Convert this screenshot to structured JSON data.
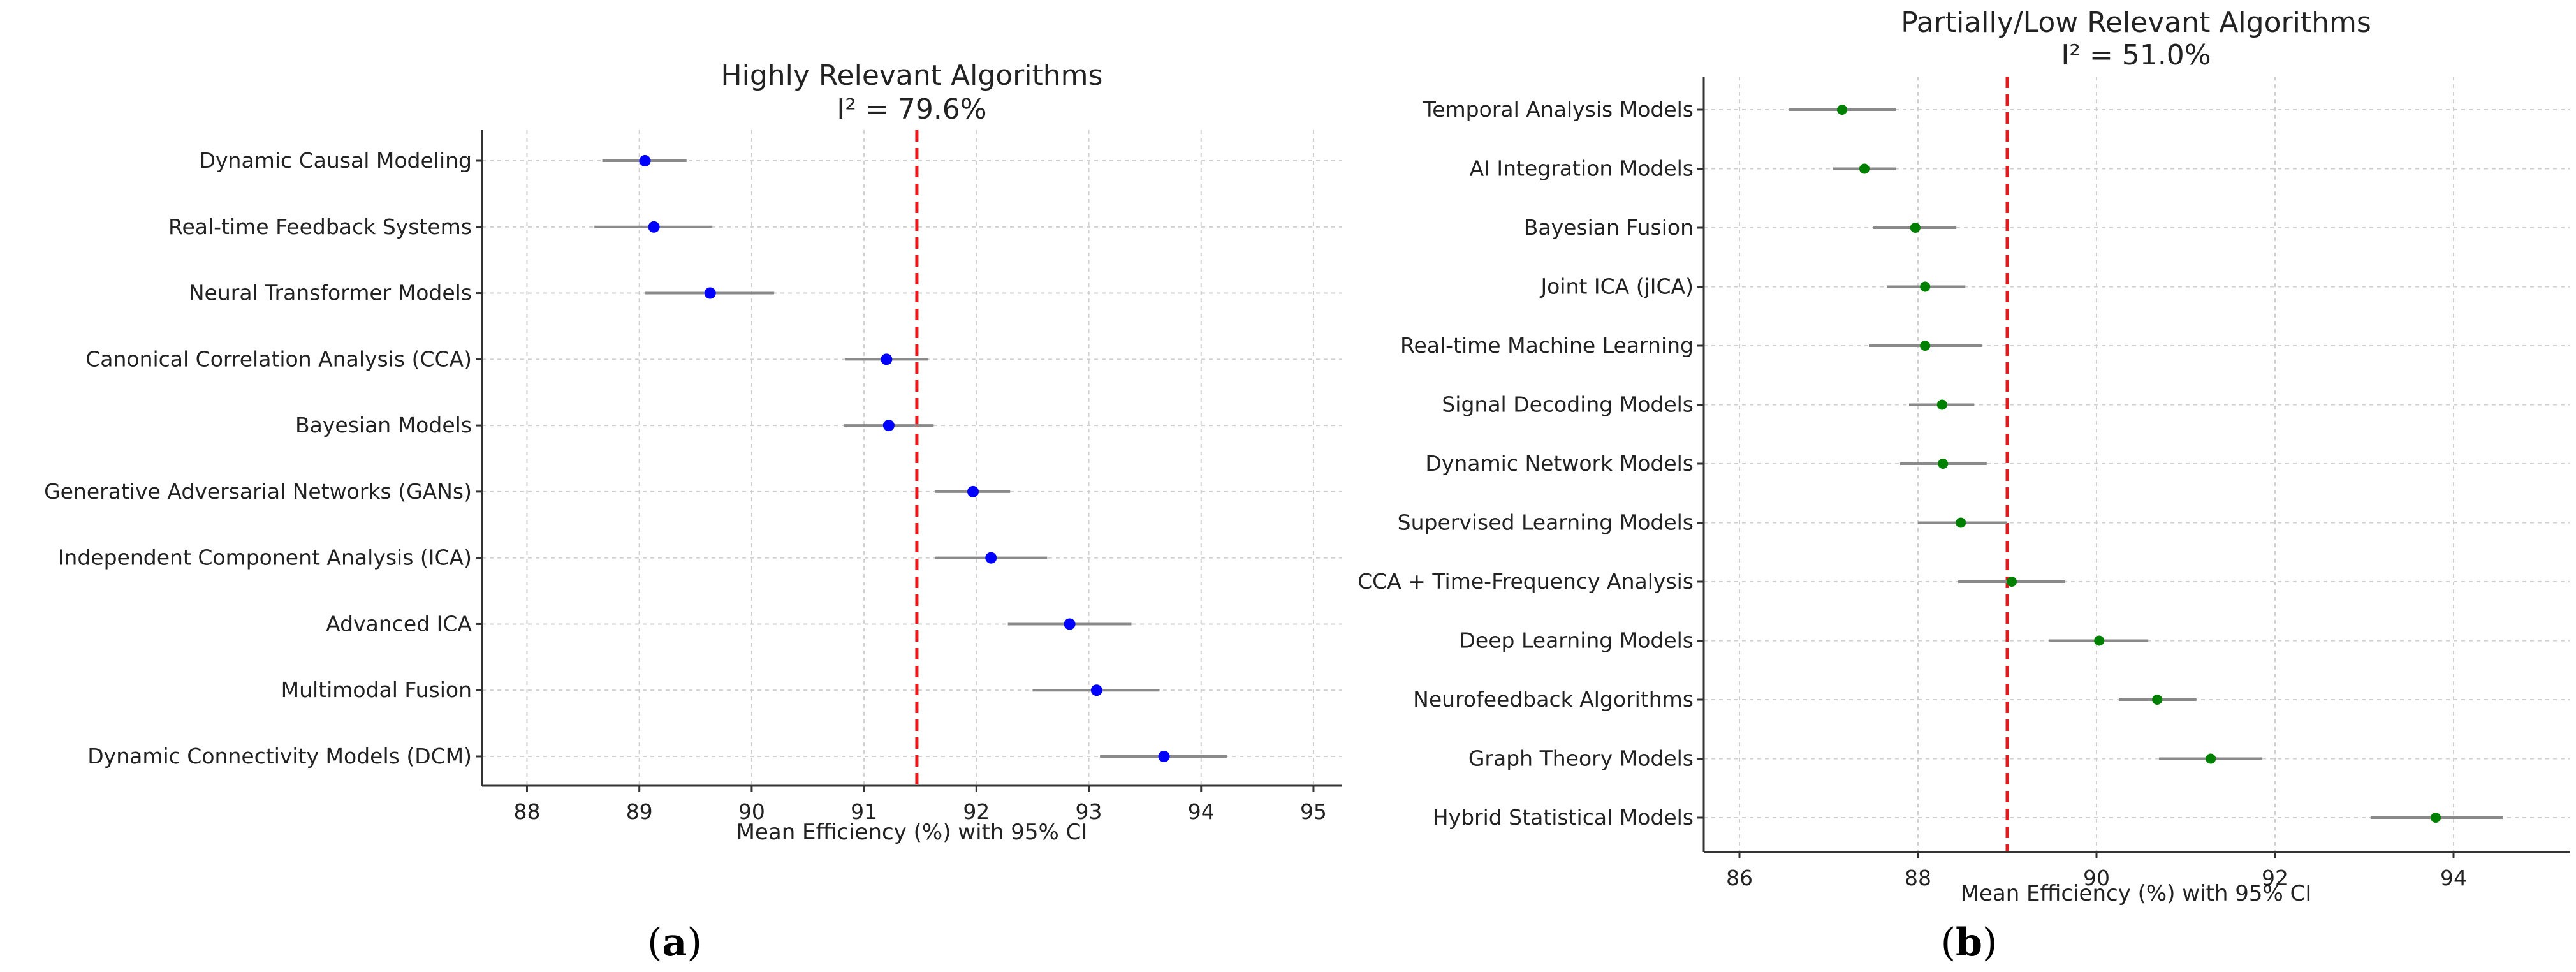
{
  "chart_data": [
    {
      "type": "scatter",
      "panel_label": "a",
      "title": "Highly Relevant Algorithms",
      "subtitle": "I² = 79.6%",
      "xlabel": "Mean Efficiency (%) with 95% CI",
      "ylabel": "",
      "xlim": [
        87.6,
        95.25
      ],
      "xticks": [
        88,
        89,
        90,
        91,
        92,
        93,
        94,
        95
      ],
      "reference_line": 91.47,
      "marker_color": "#0000ff",
      "ci_color": "#8a8a8a",
      "reference_color": "#e41a1c",
      "grid": true,
      "categories": [
        "Dynamic Causal Modeling",
        "Real-time Feedback Systems",
        "Neural Transformer Models",
        "Canonical Correlation Analysis (CCA)",
        "Bayesian Models",
        "Generative Adversarial Networks (GANs)",
        "Independent Component Analysis (ICA)",
        "Advanced ICA",
        "Multimodal Fusion",
        "Dynamic Connectivity Models (DCM)"
      ],
      "means": [
        89.05,
        89.13,
        89.63,
        91.2,
        91.22,
        91.97,
        92.13,
        92.83,
        93.07,
        93.67
      ],
      "ci_lower": [
        88.67,
        88.6,
        89.05,
        90.83,
        90.82,
        91.63,
        91.63,
        92.28,
        92.5,
        93.1
      ],
      "ci_upper": [
        89.42,
        89.65,
        90.2,
        91.57,
        91.62,
        92.3,
        92.63,
        93.38,
        93.63,
        94.23
      ]
    },
    {
      "type": "scatter",
      "panel_label": "b",
      "title": "Partially/Low Relevant Algorithms",
      "subtitle": "I² = 51.0%",
      "xlabel": "Mean Efficiency (%) with 95% CI",
      "ylabel": "",
      "xlim": [
        85.6,
        95.3
      ],
      "xticks": [
        86,
        88,
        90,
        92,
        94
      ],
      "reference_line": 89.0,
      "marker_color": "#008000",
      "ci_color": "#8a8a8a",
      "reference_color": "#e41a1c",
      "grid": true,
      "categories": [
        "Temporal Analysis Models",
        "AI Integration Models",
        "Bayesian Fusion",
        "Joint ICA (jICA)",
        "Real-time Machine Learning",
        "Signal Decoding Models",
        "Dynamic Network Models",
        "Supervised Learning Models",
        "CCA + Time-Frequency Analysis",
        "Deep Learning Models",
        "Neurofeedback Algorithms",
        "Graph Theory Models",
        "Hybrid Statistical Models"
      ],
      "means": [
        87.15,
        87.4,
        87.97,
        88.08,
        88.08,
        88.27,
        88.28,
        88.48,
        89.05,
        90.03,
        90.68,
        91.28,
        93.8
      ],
      "ci_lower": [
        86.55,
        87.05,
        87.5,
        87.65,
        87.45,
        87.9,
        87.8,
        88.0,
        88.45,
        89.47,
        90.25,
        90.7,
        93.07
      ],
      "ci_upper": [
        87.75,
        87.75,
        88.43,
        88.53,
        88.72,
        88.63,
        88.77,
        89.0,
        89.65,
        90.58,
        91.12,
        91.85,
        94.55
      ]
    }
  ]
}
